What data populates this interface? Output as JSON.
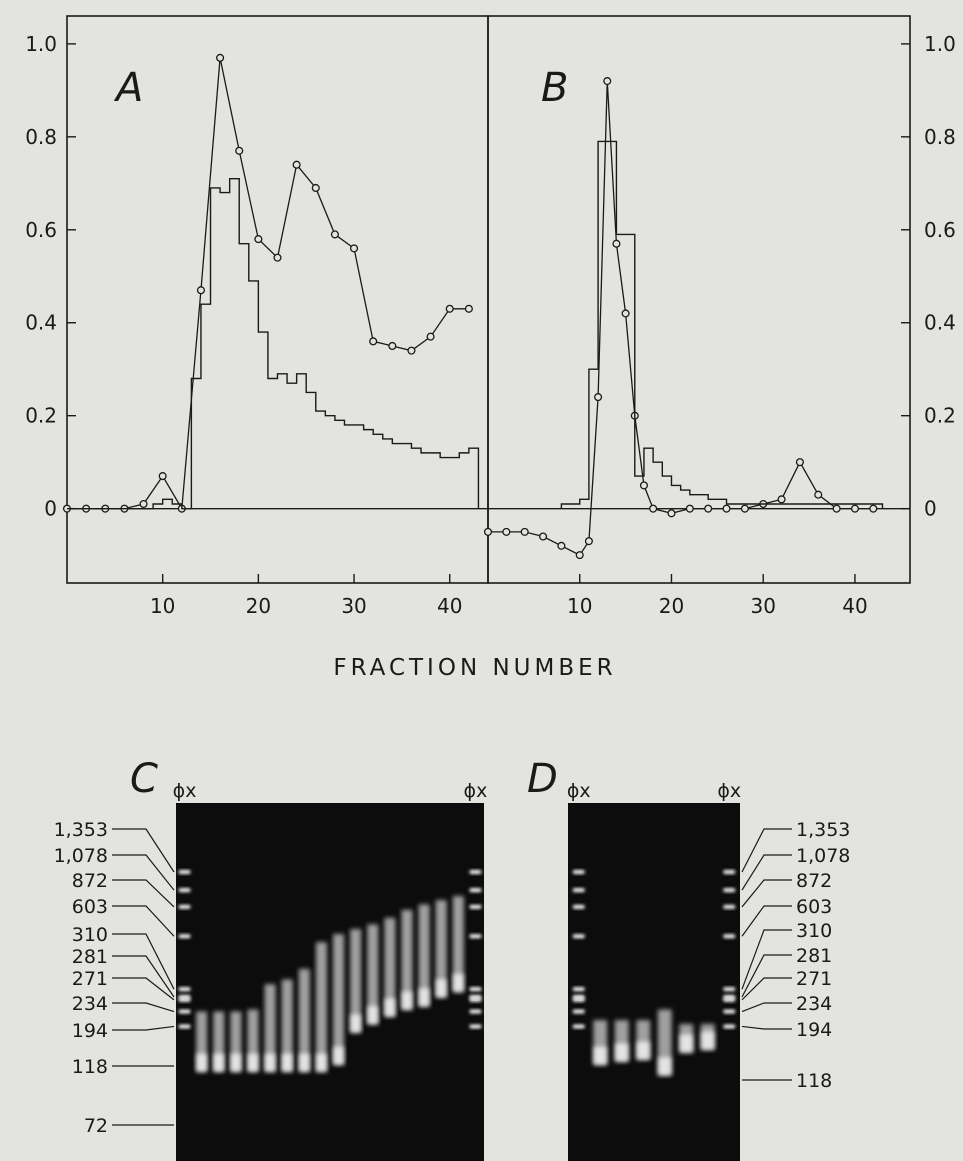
{
  "figure": {
    "xlabel": "FRACTION NUMBER",
    "panel_c_label": "C",
    "panel_d_label": "D",
    "phi_x_label": "ϕx"
  },
  "chart_data": [
    {
      "panel": "A",
      "type": "line",
      "xlim": [
        0,
        44
      ],
      "ylim": [
        -0.16,
        1.06
      ],
      "x_ticks": [
        "10",
        "20",
        "30",
        "40"
      ],
      "y_ticks": [
        "0",
        "0.2",
        "0.4",
        "0.6",
        "0.8",
        "1.0"
      ],
      "tick_side": "left",
      "series": [
        {
          "style": "circles-line",
          "x": [
            0,
            2,
            4,
            6,
            8,
            10,
            12,
            14,
            16,
            18,
            20,
            22,
            24,
            26,
            28,
            30,
            32,
            34,
            36,
            38,
            40,
            42
          ],
          "y": [
            0.0,
            0.0,
            0.0,
            0.0,
            0.01,
            0.07,
            0.0,
            0.47,
            0.97,
            0.77,
            0.58,
            0.54,
            0.74,
            0.69,
            0.59,
            0.56,
            0.36,
            0.35,
            0.34,
            0.37,
            0.43,
            0.43
          ]
        },
        {
          "style": "histogram",
          "x": [
            0,
            1,
            2,
            3,
            4,
            5,
            6,
            7,
            8,
            9,
            10,
            11,
            12,
            13,
            14,
            15,
            16,
            17,
            18,
            19,
            20,
            21,
            22,
            23,
            24,
            25,
            26,
            27,
            28,
            29,
            30,
            31,
            32,
            33,
            34,
            35,
            36,
            37,
            38,
            39,
            40,
            41,
            42
          ],
          "y": [
            0.0,
            0.0,
            0.0,
            0.0,
            0.0,
            0.0,
            0.0,
            0.0,
            0.0,
            0.01,
            0.02,
            0.01,
            0.0,
            0.28,
            0.44,
            0.69,
            0.68,
            0.71,
            0.57,
            0.49,
            0.38,
            0.28,
            0.29,
            0.27,
            0.29,
            0.25,
            0.21,
            0.2,
            0.19,
            0.18,
            0.18,
            0.17,
            0.16,
            0.15,
            0.14,
            0.14,
            0.13,
            0.12,
            0.12,
            0.11,
            0.11,
            0.12,
            0.13
          ]
        }
      ]
    },
    {
      "panel": "B",
      "type": "line",
      "xlim": [
        0,
        46
      ],
      "ylim": [
        -0.16,
        1.06
      ],
      "x_ticks": [
        "10",
        "20",
        "30",
        "40"
      ],
      "y_ticks": [
        "0",
        "0.2",
        "0.4",
        "0.6",
        "0.8",
        "1.0"
      ],
      "tick_side": "right",
      "series": [
        {
          "style": "circles-line",
          "x": [
            0,
            2,
            4,
            6,
            8,
            10,
            11,
            12,
            13,
            14,
            15,
            16,
            17,
            18,
            20,
            22,
            24,
            26,
            28,
            30,
            32,
            34,
            36,
            38,
            40,
            42
          ],
          "y": [
            -0.05,
            -0.05,
            -0.05,
            -0.06,
            -0.08,
            -0.1,
            -0.07,
            0.24,
            0.92,
            0.57,
            0.42,
            0.2,
            0.05,
            0.0,
            -0.01,
            0.0,
            0.0,
            0.0,
            0.0,
            0.01,
            0.02,
            0.1,
            0.03,
            0.0,
            0.0,
            0.0
          ]
        },
        {
          "style": "histogram",
          "x": [
            8,
            9,
            10,
            11,
            12,
            13,
            14,
            15,
            16,
            17,
            18,
            19,
            20,
            21,
            22,
            23,
            24,
            25,
            26,
            27,
            28,
            29,
            30,
            31,
            32,
            33,
            34,
            35,
            36,
            37,
            38,
            39,
            40,
            41,
            42
          ],
          "y": [
            0.01,
            0.01,
            0.02,
            0.3,
            0.79,
            0.79,
            0.59,
            0.59,
            0.07,
            0.13,
            0.1,
            0.07,
            0.05,
            0.04,
            0.03,
            0.03,
            0.02,
            0.02,
            0.01,
            0.01,
            0.01,
            0.01,
            0.01,
            0.01,
            0.01,
            0.01,
            0.01,
            0.01,
            0.01,
            0.01,
            0.01,
            0.01,
            0.01,
            0.01,
            0.01
          ]
        }
      ]
    }
  ],
  "gels": [
    {
      "panel": "C",
      "labels_side": "left",
      "size_markers": [
        "1,353",
        "1,078",
        "872",
        "603",
        "310",
        "281",
        "271",
        "234",
        "194",
        "118",
        "72"
      ],
      "lanes": [
        {
          "type": "marker"
        },
        {
          "type": "sample",
          "hi": 234,
          "lo": 110
        },
        {
          "type": "sample",
          "hi": 234,
          "lo": 110
        },
        {
          "type": "sample",
          "hi": 234,
          "lo": 110
        },
        {
          "type": "sample",
          "hi": 240,
          "lo": 110
        },
        {
          "type": "sample",
          "hi": 330,
          "lo": 110
        },
        {
          "type": "sample",
          "hi": 350,
          "lo": 110
        },
        {
          "type": "sample",
          "hi": 400,
          "lo": 110
        },
        {
          "type": "sample",
          "hi": 560,
          "lo": 110
        },
        {
          "type": "sample",
          "hi": 620,
          "lo": 120
        },
        {
          "type": "sample",
          "hi": 660,
          "lo": 180
        },
        {
          "type": "sample",
          "hi": 700,
          "lo": 200
        },
        {
          "type": "sample",
          "hi": 760,
          "lo": 220
        },
        {
          "type": "sample",
          "hi": 840,
          "lo": 240
        },
        {
          "type": "sample",
          "hi": 900,
          "lo": 250
        },
        {
          "type": "sample",
          "hi": 950,
          "lo": 280
        },
        {
          "type": "sample",
          "hi": 1000,
          "lo": 300
        },
        {
          "type": "marker"
        }
      ]
    },
    {
      "panel": "D",
      "labels_side": "right",
      "size_markers": [
        "1,353",
        "1,078",
        "872",
        "603",
        "310",
        "281",
        "271",
        "234",
        "194",
        "118"
      ],
      "lanes": [
        {
          "type": "marker"
        },
        {
          "type": "sample",
          "hi": 210,
          "lo": 120
        },
        {
          "type": "sample",
          "hi": 210,
          "lo": 125
        },
        {
          "type": "sample",
          "hi": 210,
          "lo": 128
        },
        {
          "type": "sample",
          "hi": 240,
          "lo": 105
        },
        {
          "type": "sample",
          "hi": 200,
          "lo": 140
        },
        {
          "type": "sample",
          "hi": 200,
          "lo": 145
        },
        {
          "type": "marker"
        }
      ]
    }
  ]
}
